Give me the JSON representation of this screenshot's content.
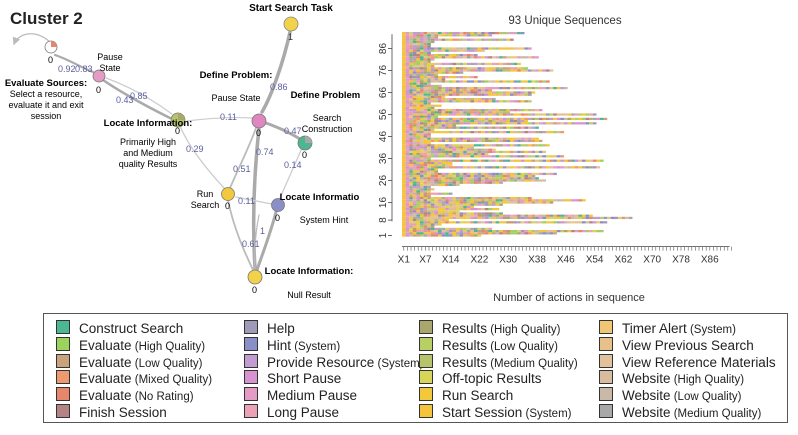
{
  "network": {
    "title": "Cluster 2",
    "nodes": [
      {
        "id": "start",
        "title": "Start Search Task",
        "sub": [],
        "num": "1",
        "color": "#f2d24a"
      },
      {
        "id": "pause",
        "title": "",
        "sub": [
          "Pause",
          "State"
        ],
        "num": "0",
        "color": "#e49bc6"
      },
      {
        "id": "evalsrc",
        "title": "Evaluate Sources:",
        "sub": [
          "Select a resource,",
          "evaluate it and exit",
          "session"
        ],
        "num": "0",
        "color": "#ffffff"
      },
      {
        "id": "locate_hm",
        "title": "Locate Information:",
        "sub": [
          "Primarily High",
          "and Medium",
          "quality Results"
        ],
        "num": "0",
        "color": "#b8c46c"
      },
      {
        "id": "def_pause",
        "title": "Define Problem:",
        "sub": [
          "Pause State"
        ],
        "num": "0",
        "color": "#e086c0"
      },
      {
        "id": "def_search",
        "title": "Define Problem:",
        "sub": [
          "Search",
          "Construction"
        ],
        "num": "0",
        "color": "#4cb891"
      },
      {
        "id": "run",
        "title": "",
        "sub": [
          "Run",
          "Search"
        ],
        "num": "0",
        "color": "#f2c93c"
      },
      {
        "id": "hint",
        "title": "Locate Information:",
        "sub": [
          "System Hint"
        ],
        "num": "0",
        "color": "#8b8fc8"
      },
      {
        "id": "null",
        "title": "Locate Information:",
        "sub": [
          "Null Result"
        ],
        "num": "0",
        "color": "#f2d24a"
      }
    ],
    "edges": [
      {
        "label": "0.92"
      },
      {
        "label": "0.83"
      },
      {
        "label": "0.43"
      },
      {
        "label": "0.85"
      },
      {
        "label": "0.11"
      },
      {
        "label": "0.86"
      },
      {
        "label": "0.47"
      },
      {
        "label": "0.29"
      },
      {
        "label": "0.74"
      },
      {
        "label": "0.51"
      },
      {
        "label": "0.14"
      },
      {
        "label": "0.11"
      },
      {
        "label": "0.61"
      },
      {
        "label": "1"
      }
    ]
  },
  "sequence_chart": {
    "title": "93 Unique Sequences",
    "xlabel": "Number of actions in sequence",
    "x_tick_labels": [
      "X1",
      "X7",
      "X14",
      "X22",
      "X30",
      "X38",
      "X46",
      "X54",
      "X62",
      "X70",
      "X78",
      "X86"
    ],
    "y_tick_labels": [
      "1",
      "8",
      "16",
      "26",
      "36",
      "46",
      "56",
      "66",
      "76",
      "86"
    ],
    "n_sequences": 93,
    "max_length": 92
  },
  "legend": {
    "items": [
      {
        "label": "Construct Search",
        "sub": "",
        "color": "#4cb891"
      },
      {
        "label": "Evaluate",
        "sub": "(High Quality)",
        "color": "#9bd35c"
      },
      {
        "label": "Evaluate",
        "sub": "(Low Quality)",
        "color": "#c8a37c"
      },
      {
        "label": "Evaluate",
        "sub": "(Mixed Quality)",
        "color": "#ef9a6e"
      },
      {
        "label": "Evaluate",
        "sub": "(No Rating)",
        "color": "#e6866d"
      },
      {
        "label": "Finish Session",
        "sub": "",
        "color": "#b48484"
      },
      {
        "label": "Help",
        "sub": "",
        "color": "#9e9ab8"
      },
      {
        "label": "Hint",
        "sub": "(System)",
        "color": "#8b8fc8"
      },
      {
        "label": "Provide Resource",
        "sub": "(System)",
        "color": "#c19bd1"
      },
      {
        "label": "Short Pause",
        "sub": "",
        "color": "#d693cf"
      },
      {
        "label": "Medium Pause",
        "sub": "",
        "color": "#e49bc6"
      },
      {
        "label": "Long Pause",
        "sub": "",
        "color": "#eba1b6"
      },
      {
        "label": "Results",
        "sub": "(High Quality)",
        "color": "#a9a76d"
      },
      {
        "label": "Results",
        "sub": "(Low Quality)",
        "color": "#b8cf66"
      },
      {
        "label": "Results",
        "sub": "(Medium Quality)",
        "color": "#b8c46c"
      },
      {
        "label": "Off-topic Results",
        "sub": "",
        "color": "#d7d65a"
      },
      {
        "label": "Run Search",
        "sub": "",
        "color": "#f2c93c"
      },
      {
        "label": "Start Session",
        "sub": "(System)",
        "color": "#f4c43a"
      },
      {
        "label": "Timer Alert",
        "sub": "(System)",
        "color": "#f0c875"
      },
      {
        "label": "View Previous Search",
        "sub": "",
        "color": "#e8c08a"
      },
      {
        "label": "View Reference Materials",
        "sub": "",
        "color": "#e2c29a"
      },
      {
        "label": "Website",
        "sub": "(High Quality)",
        "color": "#d9bc9f"
      },
      {
        "label": "Website",
        "sub": "(Low Quality)",
        "color": "#c9b9a9"
      },
      {
        "label": "Website",
        "sub": "(Medium Quality)",
        "color": "#a8a8a8"
      }
    ]
  }
}
